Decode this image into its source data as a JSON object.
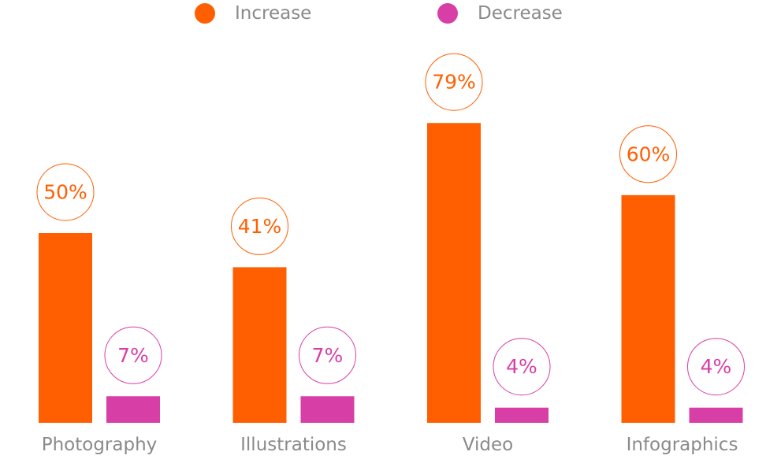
{
  "chart_data": {
    "type": "bar",
    "categories": [
      "Photography",
      "Illustrations",
      "Video",
      "Infographics"
    ],
    "series": [
      {
        "name": "Increase",
        "color": "#ff5f00",
        "values": [
          50,
          41,
          79,
          60
        ],
        "value_labels": [
          "50%",
          "41%",
          "79%",
          "60%"
        ]
      },
      {
        "name": "Decrease",
        "color": "#d83fa6",
        "values": [
          7,
          7,
          4,
          4
        ],
        "value_labels": [
          "7%",
          "7%",
          "4%",
          "4%"
        ]
      }
    ]
  }
}
